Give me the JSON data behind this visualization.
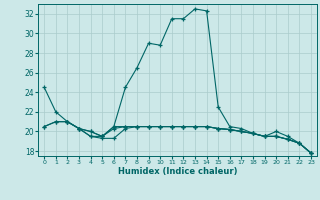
{
  "xlabel": "Humidex (Indice chaleur)",
  "bg_color": "#cce8e8",
  "grid_color": "#aacccc",
  "line_color": "#006666",
  "xlim": [
    -0.5,
    23.5
  ],
  "ylim": [
    17.5,
    33.0
  ],
  "yticks": [
    18,
    20,
    22,
    24,
    26,
    28,
    30,
    32
  ],
  "xticks": [
    0,
    1,
    2,
    3,
    4,
    5,
    6,
    7,
    8,
    9,
    10,
    11,
    12,
    13,
    14,
    15,
    16,
    17,
    18,
    19,
    20,
    21,
    22,
    23
  ],
  "series": [
    {
      "x": [
        0,
        1,
        2,
        3,
        4,
        5,
        6,
        7,
        8,
        9,
        10,
        11,
        12,
        13,
        14,
        15,
        16,
        17,
        18,
        19,
        20,
        21,
        22,
        23
      ],
      "y": [
        24.5,
        22.0,
        21.0,
        20.3,
        19.5,
        19.5,
        20.5,
        24.5,
        26.5,
        29.0,
        28.8,
        31.5,
        31.5,
        32.5,
        32.3,
        22.5,
        20.5,
        20.3,
        19.8,
        19.5,
        20.0,
        19.5,
        18.8,
        17.8
      ]
    },
    {
      "x": [
        0,
        1,
        2,
        3,
        4,
        5,
        6,
        7,
        8,
        9,
        10,
        11,
        12,
        13,
        14,
        15,
        16,
        17,
        18,
        19,
        20,
        21,
        22,
        23
      ],
      "y": [
        20.5,
        21.0,
        21.0,
        20.3,
        20.0,
        19.5,
        20.5,
        20.5,
        20.5,
        20.5,
        20.5,
        20.5,
        20.5,
        20.5,
        20.5,
        20.3,
        20.2,
        20.0,
        19.8,
        19.5,
        19.5,
        19.2,
        18.8,
        17.8
      ]
    },
    {
      "x": [
        0,
        1,
        2,
        3,
        4,
        5,
        6,
        7,
        8,
        9,
        10,
        11,
        12,
        13,
        14,
        15,
        16,
        17,
        18,
        19,
        20,
        21,
        22,
        23
      ],
      "y": [
        20.5,
        21.0,
        21.0,
        20.3,
        19.5,
        19.3,
        19.3,
        20.3,
        20.5,
        20.5,
        20.5,
        20.5,
        20.5,
        20.5,
        20.5,
        20.3,
        20.2,
        20.0,
        19.8,
        19.5,
        19.5,
        19.2,
        18.8,
        17.8
      ]
    },
    {
      "x": [
        2,
        3,
        4,
        5,
        6,
        7,
        8,
        9,
        10,
        11,
        12,
        13,
        14,
        15,
        16,
        17,
        18,
        19,
        20,
        21,
        22,
        23
      ],
      "y": [
        21.0,
        20.3,
        20.0,
        19.5,
        20.3,
        20.5,
        20.5,
        20.5,
        20.5,
        20.5,
        20.5,
        20.5,
        20.5,
        20.3,
        20.2,
        20.0,
        19.8,
        19.5,
        19.5,
        19.2,
        18.8,
        17.8
      ]
    }
  ]
}
